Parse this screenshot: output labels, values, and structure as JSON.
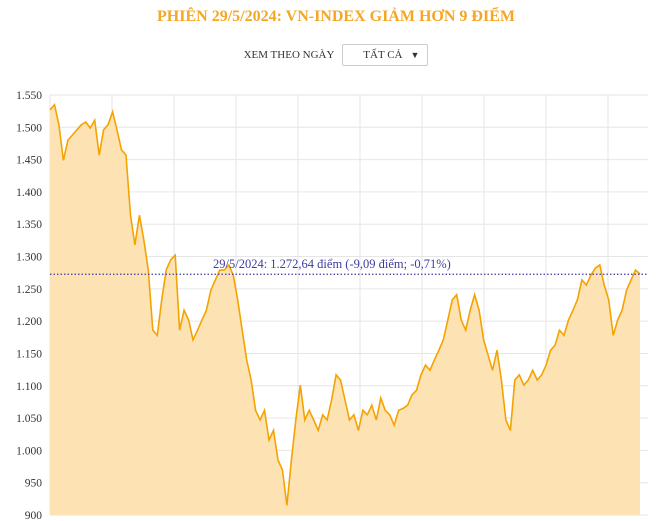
{
  "title": "PHIÊN 29/5/2024: VN-INDEX GIẢM HƠN 9 ĐIỂM",
  "filter": {
    "label": "XEM THEO NGÀY",
    "selected": "TẤT CẢ",
    "icon": "caret-down-icon"
  },
  "colors": {
    "line": "#f4a300",
    "fill": "#fde2b3",
    "reference": "#3d3d9e",
    "title": "#f5a623",
    "grid": "#e6e6e6"
  },
  "chart_data": {
    "type": "area",
    "title": "PHIÊN 29/5/2024: VN-INDEX GIẢM HƠN 9 ĐIỂM",
    "xlabel": "",
    "ylabel": "",
    "ylim": [
      900,
      1550
    ],
    "yticks": [
      900,
      950,
      1000,
      1050,
      1100,
      1150,
      1200,
      1250,
      1300,
      1350,
      1400,
      1450,
      1500,
      1550
    ],
    "ytick_labels": [
      "900",
      "950",
      "1.000",
      "1.050",
      "1.100",
      "1.150",
      "1.200",
      "1.250",
      "1.300",
      "1.350",
      "1.400",
      "1.450",
      "1.500",
      "1.550"
    ],
    "grid": true,
    "values": [
      1527,
      1535,
      1504,
      1449,
      1480,
      1488,
      1496,
      1504,
      1508,
      1499,
      1511,
      1457,
      1496,
      1504,
      1524,
      1496,
      1465,
      1457,
      1364,
      1318,
      1364,
      1325,
      1279,
      1186,
      1178,
      1233,
      1279,
      1295,
      1302,
      1186,
      1217,
      1202,
      1171,
      1186,
      1202,
      1217,
      1248,
      1264,
      1279,
      1279,
      1287,
      1271,
      1233,
      1186,
      1140,
      1109,
      1062,
      1047,
      1062,
      1016,
      1031,
      985,
      970,
      915,
      985,
      1047,
      1101,
      1047,
      1062,
      1047,
      1031,
      1055,
      1047,
      1078,
      1117,
      1109,
      1078,
      1047,
      1055,
      1031,
      1062,
      1055,
      1070,
      1047,
      1081,
      1062,
      1055,
      1039,
      1062,
      1065,
      1070,
      1086,
      1093,
      1117,
      1132,
      1124,
      1140,
      1155,
      1171,
      1202,
      1233,
      1241,
      1202,
      1186,
      1217,
      1241,
      1217,
      1171,
      1148,
      1124,
      1155,
      1109,
      1047,
      1031,
      1109,
      1117,
      1101,
      1109,
      1124,
      1109,
      1117,
      1132,
      1155,
      1163,
      1186,
      1178,
      1202,
      1217,
      1233,
      1264,
      1256,
      1271,
      1282,
      1287,
      1256,
      1233,
      1178,
      1202,
      1217,
      1248,
      1264,
      1279,
      1273
    ],
    "reference": {
      "value": 1272.64,
      "label": "29/5/2024: 1.272,64 điểm (-9,09 điểm; -0,71%)"
    }
  }
}
